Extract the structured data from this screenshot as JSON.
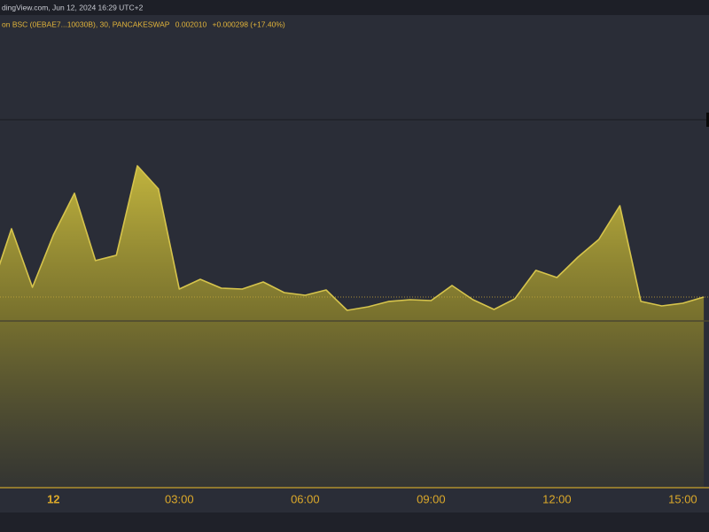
{
  "chart_data": {
    "type": "area",
    "header": "dingView.com, Jun 12, 2024 16:29 UTC+2",
    "symbol": "on BSC (0EBAE7...10030B), 30, PANCAKESWAP",
    "last_price": "0.002010",
    "change": "+0.000298 (+17.40%)",
    "categories": [
      null,
      null,
      null,
      "12",
      null,
      null,
      null,
      null,
      null,
      "03:00",
      null,
      null,
      null,
      null,
      null,
      "06:00",
      null,
      null,
      null,
      null,
      null,
      "09:00",
      null,
      null,
      null,
      null,
      null,
      "12:00",
      null,
      null,
      null,
      null,
      null,
      "15:00",
      null
    ],
    "values": [
      0.002066,
      0.00273,
      0.002113,
      0.002665,
      0.003104,
      0.002394,
      0.00245,
      0.003394,
      0.003151,
      0.002094,
      0.002197,
      0.002104,
      0.002094,
      0.002169,
      0.002057,
      0.002029,
      0.002085,
      0.00187,
      0.001907,
      0.001964,
      0.001982,
      0.001973,
      0.002132,
      0.001982,
      0.001879,
      0.001992,
      0.002291,
      0.002216,
      0.002431,
      0.002618,
      0.002973,
      0.001964,
      0.001917,
      0.001945,
      0.00201
    ],
    "ylim": [
      0,
      0.004955
    ],
    "color": "#d6c44c"
  }
}
